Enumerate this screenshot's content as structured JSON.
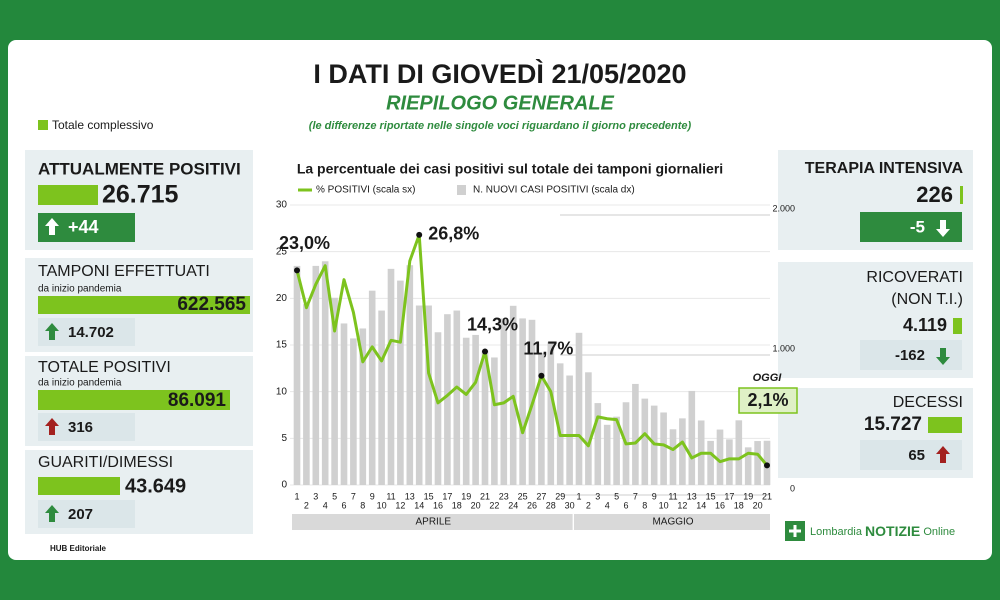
{
  "header": {
    "title": "I DATI DI GIOVEDÌ 21/05/2020",
    "subtitle": "RIEPILOGO GENERALE",
    "note": "(le differenze riportate nelle singole voci riguardano il giorno precedente)",
    "legend": "Totale complessivo"
  },
  "panels": {
    "attualmente_positivi": {
      "label": "ATTUALMENTE POSITIVI",
      "total": "26.715",
      "change": "+44"
    },
    "tamponi": {
      "label": "TAMPONI EFFETTUATI",
      "sublabel": "da inizio pandemia",
      "total": "622.565",
      "change": "14.702"
    },
    "totale_positivi": {
      "label": "TOTALE POSITIVI",
      "sublabel": "da inizio pandemia",
      "total": "86.091",
      "change": "316"
    },
    "guariti": {
      "label": "GUARITI/DIMESSI",
      "total": "43.649",
      "change": "207"
    },
    "terapia_intensiva": {
      "label": "TERAPIA INTENSIVA",
      "total": "226",
      "change": "-5"
    },
    "ricoverati": {
      "label": "RICOVERATI",
      "label2": "(NON T.I.)",
      "total": "4.119",
      "change": "-162"
    },
    "decessi": {
      "label": "DECESSI",
      "total": "15.727",
      "change": "65"
    }
  },
  "chart_data": {
    "type": "bar_line",
    "title": "La percentuale dei casi positivi sul totale dei tamponi giornalieri",
    "categories": [
      "1",
      "2",
      "3",
      "4",
      "5",
      "6",
      "7",
      "8",
      "9",
      "10",
      "11",
      "12",
      "13",
      "14",
      "15",
      "16",
      "17",
      "18",
      "19",
      "20",
      "21",
      "22",
      "23",
      "24",
      "25",
      "26",
      "27",
      "28",
      "29",
      "30",
      "1",
      "2",
      "3",
      "4",
      "5",
      "6",
      "7",
      "8",
      "9",
      "10",
      "11",
      "12",
      "13",
      "14",
      "15",
      "16",
      "17",
      "18",
      "19",
      "20",
      "21"
    ],
    "groups": [
      {
        "label": "APRILE",
        "count": 30
      },
      {
        "label": "MAGGIO",
        "count": 21
      }
    ],
    "series": [
      {
        "name": "% POSITIVI (scala sx)",
        "type": "line",
        "color": "#7dc31e",
        "values": [
          23.0,
          19,
          21.5,
          23.5,
          16.5,
          22,
          18.5,
          13.2,
          14.8,
          13.3,
          15.5,
          15.3,
          24,
          26.8,
          12,
          8.8,
          9.6,
          10.5,
          9.7,
          11,
          14.3,
          8.6,
          8.8,
          9.5,
          5.6,
          8.6,
          11.7,
          10,
          5.3,
          5.3,
          5.3,
          4.2,
          7.3,
          7.1,
          7,
          4.4,
          4.5,
          5.5,
          4.4,
          4.3,
          3.8,
          4.6,
          2.9,
          3.4,
          3.4,
          2.5,
          2.8,
          2.8,
          3.4,
          3.3,
          2.1
        ],
        "value_labels": [
          "23,0%",
          null,
          null,
          null,
          null,
          null,
          null,
          null,
          null,
          null,
          null,
          null,
          null,
          "26,8%",
          null,
          null,
          null,
          null,
          null,
          null,
          "14,3%",
          null,
          null,
          null,
          null,
          null,
          "11,7%",
          null,
          null,
          null,
          null,
          null,
          null,
          null,
          null,
          null,
          null,
          null,
          null,
          null,
          null,
          null,
          null,
          null,
          null,
          null,
          null,
          null,
          null,
          null,
          "2,1%"
        ]
      },
      {
        "name": "N. NUOVI CASI POSITIVI (scala dx)",
        "type": "bar",
        "axis": "y2",
        "color": "#d0d0d0",
        "values": [
          1565,
          1292,
          1565,
          1598,
          1337,
          1154,
          1047,
          1118,
          1388,
          1246,
          1544,
          1460,
          1570,
          1282,
          1282,
          1091,
          1220,
          1246,
          1052,
          1072,
          960,
          911,
          1189,
          1280,
          1190,
          1180,
          944,
          1020,
          869,
          782,
          1087,
          805,
          585,
          430,
          488,
          591,
          722,
          617,
          567,
          518,
          398,
          476,
          672,
          461,
          315,
          396,
          326,
          462,
          269,
          314,
          316
        ]
      }
    ],
    "ylim": [
      0,
      30
    ],
    "yticks": [
      0,
      5,
      10,
      15,
      20,
      25,
      30
    ],
    "y2lim": [
      0,
      2000
    ],
    "y2ticks": [
      0,
      {
        "value": 1000,
        "label": "1.000"
      },
      {
        "value": 2000,
        "label": "2.000"
      }
    ],
    "grid": true,
    "annotation": "OGGI"
  },
  "footer": {
    "credit": "HUB Editoriale",
    "logo_1": "Lombardia",
    "logo_2": "NOTIZIE",
    "logo_3": "Online"
  }
}
